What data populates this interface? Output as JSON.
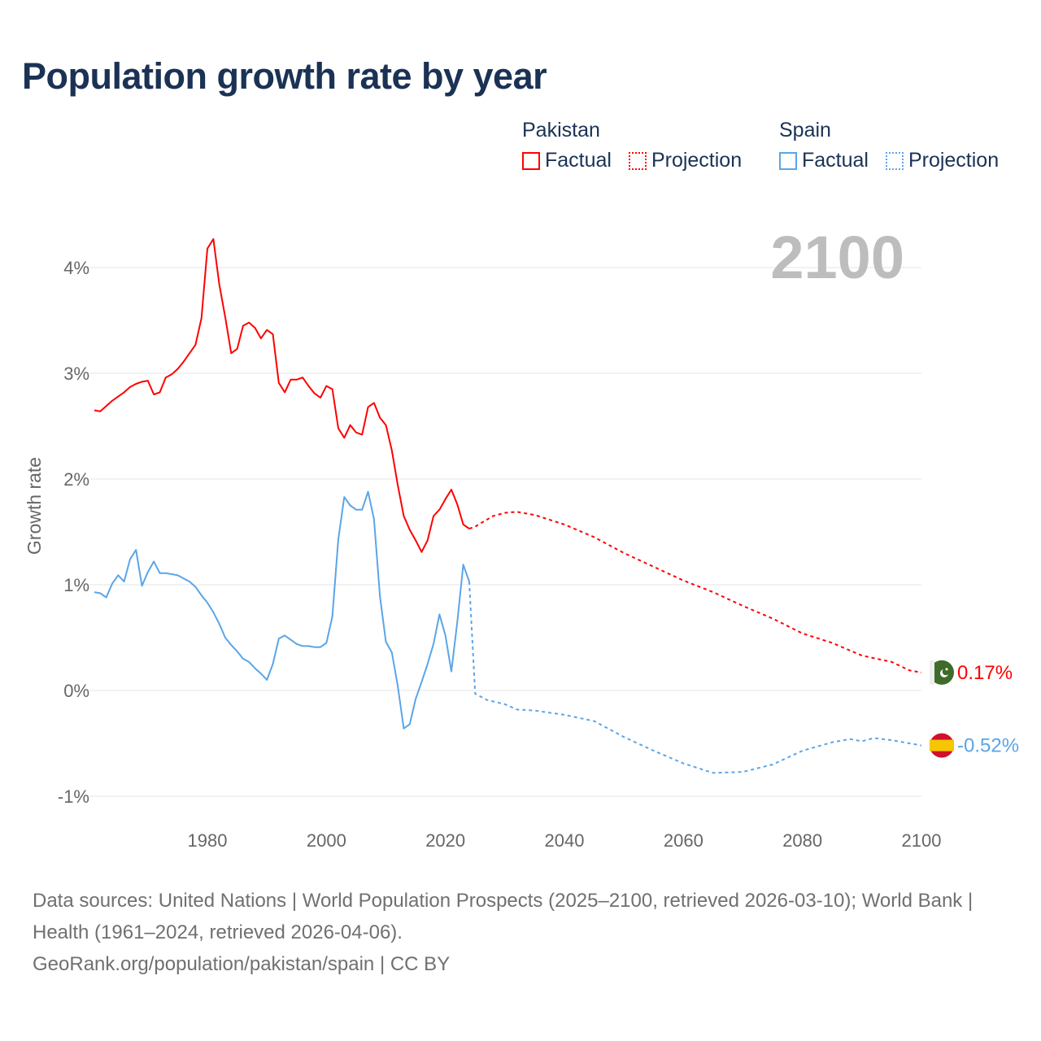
{
  "title": "Population growth rate by year",
  "legend": [
    {
      "group": "Pakistan",
      "color": "#ff0000",
      "factual": "Factual",
      "projection": "Projection"
    },
    {
      "group": "Spain",
      "color": "#5aa5e8",
      "factual": "Factual",
      "projection": "Projection"
    }
  ],
  "footer": {
    "line1": "Data sources: United Nations | World Population Prospects (2025–2100, retrieved 2026-03-10); World Bank | Health (1961–2024, retrieved 2026-04-06).",
    "line2": "GeoRank.org/population/pakistan/spain | CC BY"
  },
  "chart_data": {
    "type": "line",
    "title": "Population growth rate by year",
    "xlabel": "",
    "ylabel": "Growth rate",
    "current_year_label": "2100",
    "xlim": [
      1961,
      2100
    ],
    "ylim": [
      -1.1,
      4.4
    ],
    "x_ticks": [
      1980,
      2000,
      2020,
      2040,
      2060,
      2080,
      2100
    ],
    "y_ticks": [
      {
        "v": 4,
        "label": "4%"
      },
      {
        "v": 3,
        "label": "3%"
      },
      {
        "v": 2,
        "label": "2%"
      },
      {
        "v": 1,
        "label": "1%"
      },
      {
        "v": 0,
        "label": "0%"
      },
      {
        "v": -1,
        "label": "-1%"
      }
    ],
    "grid": true,
    "legend_position": "top-right",
    "series": [
      {
        "name": "Pakistan",
        "color": "#ff0000",
        "end_label": "0.17%",
        "flag": "pakistan-flag",
        "factual": {
          "start_year": 1961,
          "values": [
            2.65,
            2.64,
            2.69,
            2.74,
            2.78,
            2.82,
            2.87,
            2.9,
            2.92,
            2.93,
            2.8,
            2.82,
            2.96,
            2.99,
            3.04,
            3.11,
            3.19,
            3.27,
            3.52,
            4.18,
            4.27,
            3.84,
            3.53,
            3.19,
            3.23,
            3.45,
            3.48,
            3.43,
            3.33,
            3.41,
            3.37,
            2.91,
            2.82,
            2.94,
            2.94,
            2.96,
            2.88,
            2.81,
            2.77,
            2.88,
            2.85,
            2.48,
            2.39,
            2.51,
            2.44,
            2.42,
            2.68,
            2.72,
            2.58,
            2.51,
            2.27,
            1.94,
            1.65,
            1.52,
            1.42,
            1.31,
            1.42,
            1.65,
            1.71,
            1.81,
            1.9,
            1.76,
            1.57,
            1.53
          ]
        },
        "projection": {
          "x": [
            2024,
            2025,
            2028,
            2030,
            2032,
            2035,
            2040,
            2045,
            2050,
            2055,
            2060,
            2065,
            2070,
            2075,
            2080,
            2085,
            2090,
            2095,
            2098,
            2100
          ],
          "values": [
            1.53,
            1.55,
            1.65,
            1.68,
            1.69,
            1.66,
            1.57,
            1.45,
            1.3,
            1.17,
            1.04,
            0.93,
            0.8,
            0.68,
            0.54,
            0.45,
            0.33,
            0.27,
            0.19,
            0.17
          ]
        }
      },
      {
        "name": "Spain",
        "color": "#5aa5e8",
        "end_label": "-0.52%",
        "flag": "spain-flag",
        "factual": {
          "start_year": 1961,
          "values": [
            0.93,
            0.92,
            0.88,
            1.01,
            1.09,
            1.03,
            1.24,
            1.33,
            0.99,
            1.12,
            1.22,
            1.11,
            1.11,
            1.1,
            1.09,
            1.06,
            1.03,
            0.98,
            0.9,
            0.83,
            0.74,
            0.63,
            0.5,
            0.43,
            0.37,
            0.3,
            0.27,
            0.21,
            0.16,
            0.1,
            0.25,
            0.49,
            0.52,
            0.48,
            0.44,
            0.42,
            0.42,
            0.41,
            0.41,
            0.45,
            0.7,
            1.43,
            1.83,
            1.75,
            1.71,
            1.71,
            1.88,
            1.62,
            0.89,
            0.46,
            0.36,
            0.04,
            -0.36,
            -0.32,
            -0.08,
            0.08,
            0.25,
            0.44,
            0.72,
            0.52,
            0.18,
            0.65,
            1.19,
            1.03
          ]
        },
        "projection": {
          "x": [
            2024,
            2025,
            2027,
            2030,
            2032,
            2035,
            2040,
            2045,
            2050,
            2055,
            2060,
            2065,
            2070,
            2075,
            2080,
            2085,
            2088,
            2090,
            2092,
            2095,
            2100
          ],
          "values": [
            1.03,
            -0.03,
            -0.09,
            -0.13,
            -0.18,
            -0.19,
            -0.23,
            -0.29,
            -0.44,
            -0.57,
            -0.69,
            -0.78,
            -0.77,
            -0.7,
            -0.57,
            -0.49,
            -0.46,
            -0.48,
            -0.45,
            -0.47,
            -0.52
          ]
        }
      }
    ]
  }
}
